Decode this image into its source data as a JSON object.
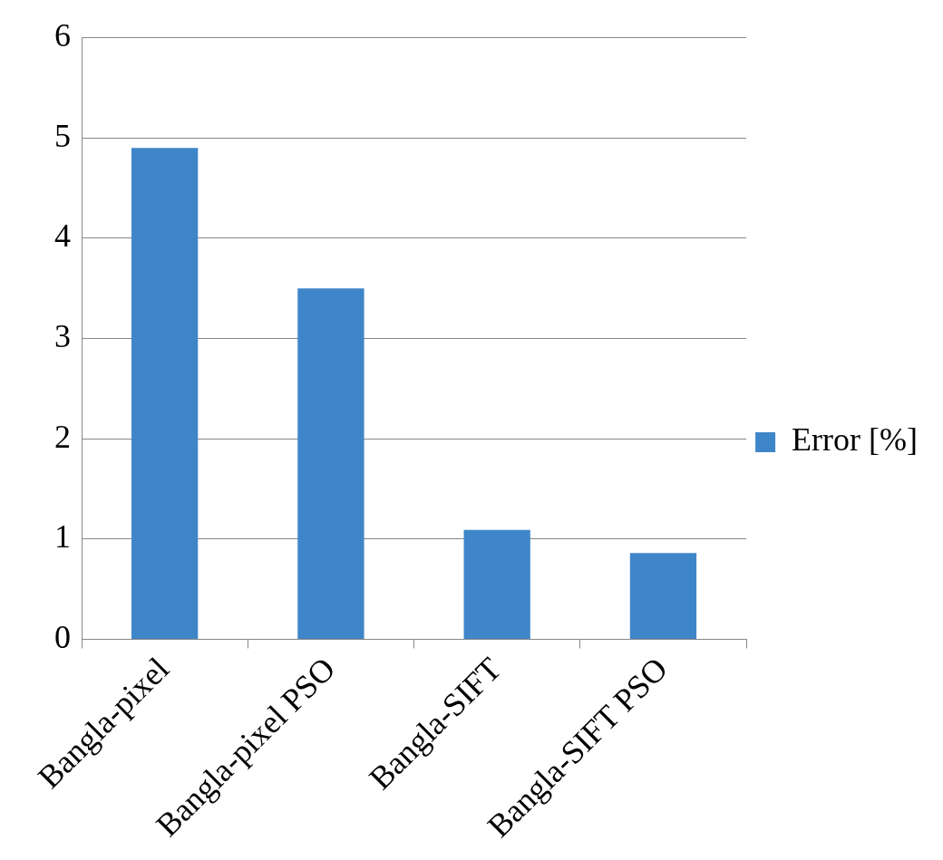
{
  "chart_data": {
    "type": "bar",
    "categories": [
      "Bangla-pixel",
      "Bangla-pixel PSO",
      "Bangla-SIFT",
      "Bangla-SIFT PSO"
    ],
    "series": [
      {
        "name": "Error [%]",
        "color": "#3f86c8",
        "values": [
          4.9,
          3.5,
          1.09,
          0.86
        ]
      }
    ],
    "ylim": [
      0,
      6
    ],
    "yticks": [
      0,
      1,
      2,
      3,
      4,
      5,
      6
    ],
    "grid": "y",
    "legend": "right"
  }
}
